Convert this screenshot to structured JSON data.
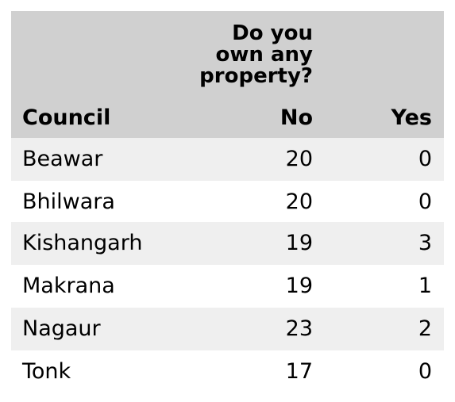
{
  "table": {
    "question": "Do you\nown any\nproperty?",
    "columns": {
      "council": "Council",
      "no": "No",
      "yes": "Yes"
    },
    "rows": [
      {
        "council": "Beawar",
        "no": "20",
        "yes": "0"
      },
      {
        "council": "Bhilwara",
        "no": "20",
        "yes": "0"
      },
      {
        "council": "Kishangarh",
        "no": "19",
        "yes": "3"
      },
      {
        "council": "Makrana",
        "no": "19",
        "yes": "1"
      },
      {
        "council": "Nagaur",
        "no": "23",
        "yes": "2"
      },
      {
        "council": "Tonk",
        "no": "17",
        "yes": "0"
      }
    ]
  }
}
